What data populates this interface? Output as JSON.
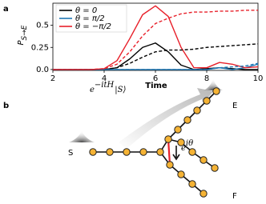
{
  "panel_labels": [
    "a",
    "b"
  ],
  "chart_data": {
    "type": "line",
    "ylabel": "P",
    "ylabel_subscript": "S→E",
    "xlabel": "Time",
    "x": [
      2,
      2.5,
      3,
      3.5,
      4,
      4.5,
      5,
      5.5,
      6,
      6.5,
      7,
      7.5,
      8,
      8.5,
      9,
      9.5,
      10
    ],
    "xlim": [
      2,
      10
    ],
    "xticks": [
      2,
      4,
      6,
      8,
      10
    ],
    "ylim": [
      -0.01,
      0.75
    ],
    "yticks": [
      {
        "value": 0,
        "label": "0.0"
      },
      0.25,
      0.5
    ],
    "legend": "upper left",
    "series": [
      {
        "name": "θ = 0",
        "color": "#000000",
        "values": [
          0,
          0,
          0,
          0,
          0,
          0.02,
          0.12,
          0.25,
          0.3,
          0.2,
          0.05,
          0,
          0.01,
          0.02,
          0.01,
          0,
          0
        ]
      },
      {
        "name": "θ = π/2",
        "color": "#1f77b4",
        "values": [
          0,
          0,
          0,
          0,
          0,
          0,
          0,
          0,
          0,
          0,
          0,
          0,
          0,
          0.02,
          0,
          0.02,
          0.06
        ]
      },
      {
        "name": "θ = −π/2",
        "color": "#e8202a",
        "values": [
          0,
          0,
          0,
          0,
          0.01,
          0.1,
          0.35,
          0.62,
          0.72,
          0.6,
          0.25,
          0.02,
          0.02,
          0.08,
          0.06,
          0.02,
          0.03
        ]
      },
      {
        "color": "#000000",
        "dashed": true,
        "values": [
          0,
          0,
          0,
          0,
          0,
          0.02,
          0.07,
          0.14,
          0.2,
          0.22,
          0.22,
          0.23,
          0.25,
          0.26,
          0.27,
          0.28,
          0.29
        ]
      },
      {
        "color": "#1f77b4",
        "dashed": true,
        "values": [
          0,
          0,
          0,
          0,
          0,
          0,
          0,
          0,
          0,
          0,
          0,
          0,
          0,
          0.02,
          0.03,
          0.04,
          0.07
        ]
      },
      {
        "color": "#e8202a",
        "dashed": true,
        "values": [
          0,
          0,
          0,
          0,
          0.01,
          0.06,
          0.2,
          0.38,
          0.52,
          0.58,
          0.63,
          0.65,
          0.65,
          0.66,
          0.66,
          0.67,
          0.67
        ]
      }
    ]
  },
  "diagram": {
    "evolution": {
      "base": "e",
      "sup": "−itH",
      "rest": "|S⟩"
    },
    "phase": {
      "base": "e",
      "sup": "iθ"
    },
    "nodes": {
      "start": "S",
      "end_e": "E",
      "end_f": "F"
    }
  }
}
